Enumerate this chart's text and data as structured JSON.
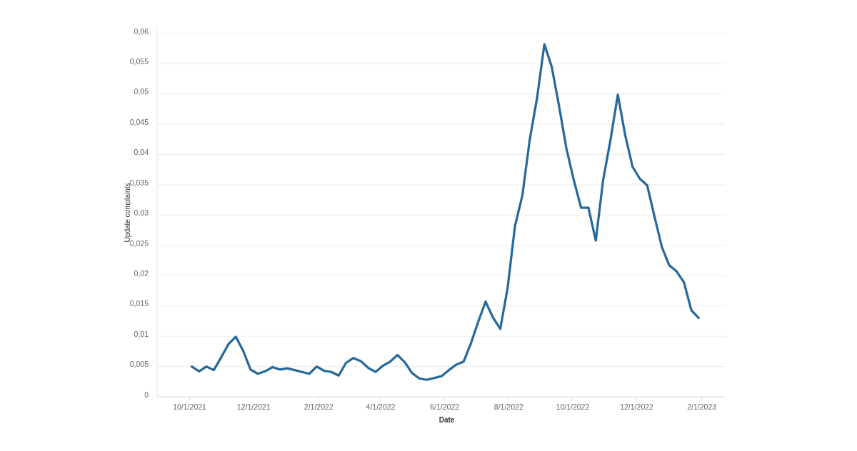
{
  "chart_data": {
    "type": "line",
    "xlabel": "Date",
    "ylabel": "Update complaints",
    "x": [
      "2021-10-03",
      "2021-10-10",
      "2021-10-17",
      "2021-10-24",
      "2021-10-31",
      "2021-11-07",
      "2021-11-14",
      "2021-11-21",
      "2021-11-28",
      "2021-12-05",
      "2021-12-12",
      "2021-12-19",
      "2021-12-26",
      "2022-01-02",
      "2022-01-09",
      "2022-01-16",
      "2022-01-23",
      "2022-01-30",
      "2022-02-06",
      "2022-02-13",
      "2022-02-20",
      "2022-02-27",
      "2022-03-06",
      "2022-03-13",
      "2022-03-20",
      "2022-03-27",
      "2022-04-03",
      "2022-04-10",
      "2022-04-17",
      "2022-04-24",
      "2022-05-01",
      "2022-05-08",
      "2022-05-15",
      "2022-05-22",
      "2022-05-29",
      "2022-06-05",
      "2022-06-12",
      "2022-06-19",
      "2022-06-26",
      "2022-07-03",
      "2022-07-10",
      "2022-07-17",
      "2022-07-24",
      "2022-07-31",
      "2022-08-07",
      "2022-08-14",
      "2022-08-21",
      "2022-08-28",
      "2022-09-04",
      "2022-09-11",
      "2022-09-18",
      "2022-09-25",
      "2022-10-02",
      "2022-10-09",
      "2022-10-16",
      "2022-10-23",
      "2022-10-30",
      "2022-11-06",
      "2022-11-13",
      "2022-11-20",
      "2022-11-27",
      "2022-12-04",
      "2022-12-11",
      "2022-12-18",
      "2022-12-25",
      "2023-01-01",
      "2023-01-08",
      "2023-01-15",
      "2023-01-22",
      "2023-01-29"
    ],
    "series": [
      {
        "color": "#25689a",
        "values": [
          0.005,
          0.0042,
          0.005,
          0.0044,
          0.0065,
          0.0087,
          0.0099,
          0.0076,
          0.0045,
          0.0038,
          0.0042,
          0.0049,
          0.0045,
          0.0047,
          0.0044,
          0.0041,
          0.0038,
          0.005,
          0.0043,
          0.0041,
          0.0035,
          0.0056,
          0.0064,
          0.0059,
          0.0048,
          0.0041,
          0.0051,
          0.0058,
          0.0069,
          0.0057,
          0.0039,
          0.003,
          0.0028,
          0.0031,
          0.0034,
          0.0044,
          0.0053,
          0.0058,
          0.0088,
          0.0124,
          0.0157,
          0.0131,
          0.0112,
          0.018,
          0.0282,
          0.0332,
          0.0424,
          0.0493,
          0.0582,
          0.0545,
          0.048,
          0.041,
          0.0358,
          0.0312,
          0.0312,
          0.0258,
          0.0358,
          0.0424,
          0.0499,
          0.0432,
          0.038,
          0.036,
          0.0349,
          0.0297,
          0.0247,
          0.0217,
          0.0207,
          0.0189,
          0.0143,
          0.013
        ]
      }
    ],
    "xlim": [
      "2021-08-31",
      "2023-02-23"
    ],
    "xticks": [
      {
        "value": "2021-10-01",
        "label": "10/1/2021"
      },
      {
        "value": "2021-12-01",
        "label": "12/1/2021"
      },
      {
        "value": "2022-02-01",
        "label": "2/1/2022"
      },
      {
        "value": "2022-04-01",
        "label": "4/1/2022"
      },
      {
        "value": "2022-06-01",
        "label": "6/1/2022"
      },
      {
        "value": "2022-08-01",
        "label": "8/1/2022"
      },
      {
        "value": "2022-10-01",
        "label": "10/1/2022"
      },
      {
        "value": "2022-12-01",
        "label": "12/1/2022"
      },
      {
        "value": "2023-02-01",
        "label": "2/1/2023"
      }
    ],
    "ylim": [
      0,
      0.0608
    ],
    "yticks": [
      0,
      {
        "value": 0.005,
        "label": "0,005"
      },
      {
        "value": 0.01,
        "label": "0,01"
      },
      {
        "value": 0.015,
        "label": "0,015"
      },
      {
        "value": 0.02,
        "label": "0,02"
      },
      {
        "value": 0.025,
        "label": "0,025"
      },
      {
        "value": 0.03,
        "label": "0,03"
      },
      {
        "value": 0.035,
        "label": "0,035"
      },
      {
        "value": 0.04,
        "label": "0,04"
      },
      {
        "value": 0.045,
        "label": "0,045"
      },
      {
        "value": 0.05,
        "label": "0,05"
      },
      {
        "value": 0.055,
        "label": "0,055"
      },
      {
        "value": 0.06,
        "label": "0,06"
      }
    ],
    "grid": "y",
    "marker": "none",
    "line_style": "solid"
  }
}
